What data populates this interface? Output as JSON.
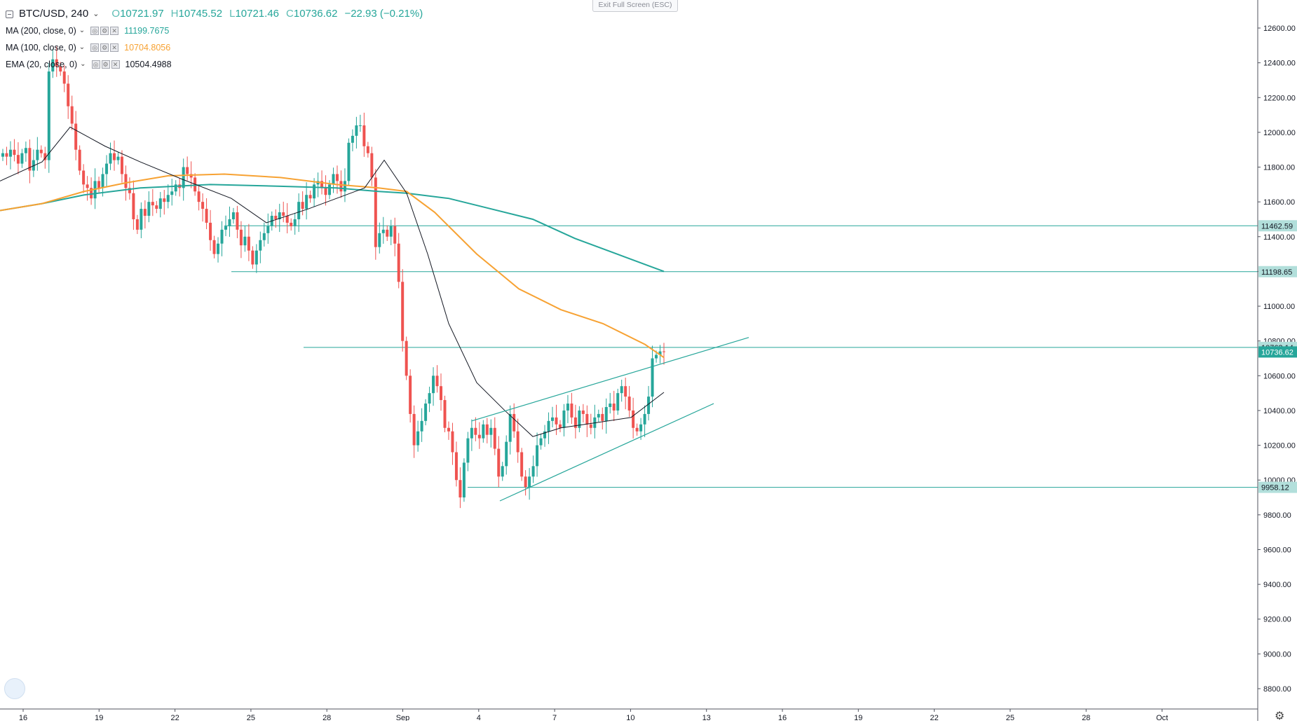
{
  "header": {
    "symbol": "BTC/USD, 240",
    "ohlc": {
      "open_label": "O",
      "open": "10721.97",
      "high_label": "H",
      "high": "10745.52",
      "low_label": "L",
      "low": "10721.46",
      "close_label": "C",
      "close": "10736.62",
      "change": "−22.93 (−0.21%)"
    },
    "exit_fullscreen": "Exit Full Screen (ESC)"
  },
  "indicators": [
    {
      "name": "MA (200, close, 0)",
      "value": "11199.7675",
      "color": "#26a69a"
    },
    {
      "name": "MA (100, close, 0)",
      "value": "10704.8056",
      "color": "#f7a233"
    },
    {
      "name": "EMA (20, close, 0)",
      "value": "10504.4988",
      "color": "#131722"
    }
  ],
  "chart_data": {
    "type": "candlestick",
    "symbol": "BTC/USD",
    "interval": "240",
    "ylim": [
      8700,
      12800
    ],
    "x_ticks": [
      "16",
      "19",
      "22",
      "25",
      "28",
      "Sep",
      "4",
      "7",
      "10",
      "13",
      "16",
      "19",
      "22",
      "25",
      "28",
      "Oct"
    ],
    "y_ticks": [
      "12600.00",
      "12400.00",
      "12200.00",
      "12000.00",
      "11800.00",
      "11600.00",
      "11400.00",
      "11200.00",
      "11000.00",
      "10800.00",
      "10600.00",
      "10400.00",
      "10200.00",
      "10000.00",
      "9800.00",
      "9600.00",
      "9400.00",
      "9200.00",
      "9000.00",
      "8800.00"
    ],
    "horizontal_levels": [
      {
        "label": "11462.59",
        "value": 11462.59
      },
      {
        "label": "11198.65",
        "value": 11198.65
      },
      {
        "label": "10763.14",
        "value": 10763.14
      },
      {
        "label": "9958.12",
        "value": 9958.12
      }
    ],
    "current_price": {
      "label": "10736.62",
      "value": 10736.62
    },
    "colors": {
      "up": "#26a69a",
      "down": "#ef5350",
      "ma200": "#26a69a",
      "ma100": "#f7a233",
      "ema20": "#131722",
      "lines": "#26a69a"
    },
    "candles_close": [
      11880,
      11860,
      11900,
      11870,
      11820,
      11880,
      11910,
      11780,
      11840,
      11900,
      11880,
      11840,
      12350,
      12420,
      12380,
      12350,
      12280,
      12150,
      12050,
      11900,
      11780,
      11700,
      11680,
      11620,
      11720,
      11680,
      11760,
      11820,
      11880,
      11840,
      11860,
      11760,
      11680,
      11650,
      11500,
      11440,
      11560,
      11520,
      11600,
      11580,
      11560,
      11620,
      11600,
      11640,
      11660,
      11700,
      11680,
      11800,
      11760,
      11740,
      11660,
      11600,
      11560,
      11480,
      11380,
      11300,
      11360,
      11440,
      11460,
      11500,
      11540,
      11440,
      11350,
      11400,
      11320,
      11240,
      11320,
      11380,
      11420,
      11460,
      11520,
      11500,
      11540,
      11520,
      11480,
      11460,
      11500,
      11600,
      11560,
      11640,
      11620,
      11700,
      11720,
      11680,
      11640,
      11700,
      11760,
      11720,
      11660,
      11720,
      11940,
      11980,
      12040,
      12040,
      11920,
      11880,
      11740,
      11340,
      11420,
      11440,
      11400,
      11460,
      11360,
      11140,
      10800,
      10600,
      10380,
      10200,
      10280,
      10340,
      10440,
      10500,
      10600,
      10540,
      10460,
      10300,
      10280,
      10160,
      10000,
      9900,
      10100,
      10240,
      10300,
      10260,
      10240,
      10320,
      10260,
      10300,
      10180,
      10020,
      10080,
      10220,
      10380,
      10280,
      10160,
      10020,
      9960,
      10020,
      10080,
      10200,
      10240,
      10280,
      10340,
      10360,
      10320,
      10300,
      10400,
      10440,
      10360,
      10300,
      10400,
      10380,
      10320,
      10300,
      10360,
      10380,
      10340,
      10420,
      10440,
      10400,
      10500,
      10540,
      10480,
      10400,
      10300,
      10280,
      10320,
      10380,
      10480,
      10700,
      10720,
      10740,
      10736.62
    ],
    "ma200": [
      [
        0,
        11550
      ],
      [
        60,
        11590
      ],
      [
        120,
        11640
      ],
      [
        200,
        11680
      ],
      [
        300,
        11700
      ],
      [
        400,
        11690
      ],
      [
        480,
        11680
      ],
      [
        540,
        11660
      ],
      [
        580,
        11650
      ],
      [
        640,
        11620
      ],
      [
        700,
        11560
      ],
      [
        760,
        11500
      ],
      [
        820,
        11390
      ],
      [
        880,
        11300
      ],
      [
        947,
        11199.77
      ]
    ],
    "ma100": [
      [
        0,
        11550
      ],
      [
        60,
        11590
      ],
      [
        120,
        11660
      ],
      [
        180,
        11710
      ],
      [
        240,
        11750
      ],
      [
        320,
        11760
      ],
      [
        400,
        11740
      ],
      [
        480,
        11700
      ],
      [
        540,
        11680
      ],
      [
        580,
        11660
      ],
      [
        620,
        11540
      ],
      [
        680,
        11300
      ],
      [
        740,
        11100
      ],
      [
        800,
        10980
      ],
      [
        860,
        10900
      ],
      [
        920,
        10780
      ],
      [
        947,
        10704.81
      ]
    ],
    "ema20": [
      [
        0,
        11720
      ],
      [
        60,
        11830
      ],
      [
        100,
        12030
      ],
      [
        150,
        11920
      ],
      [
        200,
        11830
      ],
      [
        260,
        11730
      ],
      [
        330,
        11620
      ],
      [
        380,
        11480
      ],
      [
        440,
        11560
      ],
      [
        480,
        11620
      ],
      [
        520,
        11680
      ],
      [
        548,
        11840
      ],
      [
        580,
        11650
      ],
      [
        610,
        11300
      ],
      [
        640,
        10900
      ],
      [
        680,
        10560
      ],
      [
        720,
        10400
      ],
      [
        760,
        10250
      ],
      [
        800,
        10300
      ],
      [
        850,
        10330
      ],
      [
        900,
        10360
      ],
      [
        947,
        10504.5
      ]
    ],
    "trendlines": [
      {
        "from": [
          673,
          10340
        ],
        "to": [
          1068,
          10820
        ]
      },
      {
        "from": [
          713,
          9880
        ],
        "to": [
          1018,
          10440
        ]
      }
    ]
  }
}
